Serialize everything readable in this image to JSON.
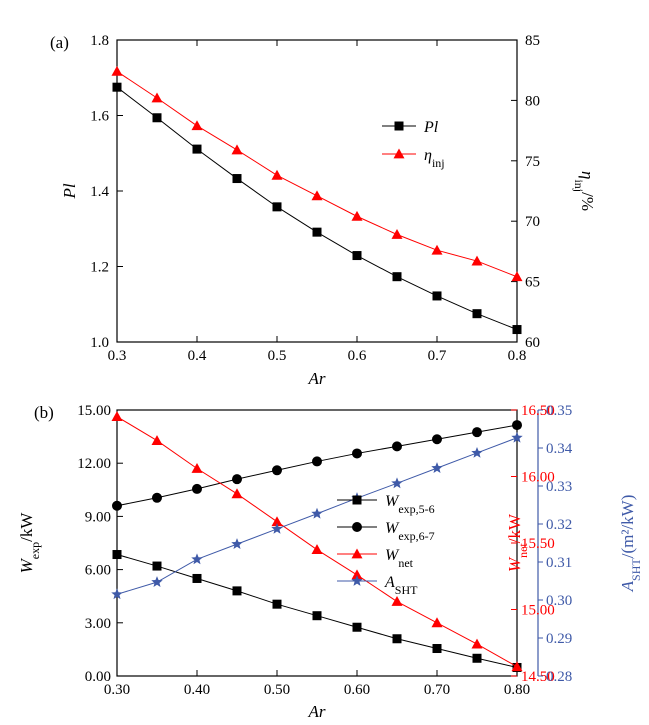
{
  "chart_data": [
    {
      "panel": "(a)",
      "type": "line",
      "xlabel": "Ar",
      "xlim": [
        0.3,
        0.8
      ],
      "x_ticks": [
        "0.3",
        "0.4",
        "0.5",
        "0.6",
        "0.7",
        "0.8"
      ],
      "ylabel_left": "Pl",
      "ylim_left": [
        1.0,
        1.8
      ],
      "y_ticks_left": [
        "1.0",
        "1.2",
        "1.4",
        "1.6",
        "1.8"
      ],
      "ylabel_right": "η_inj/%",
      "ylabel_right_parts": {
        "symbol": "η",
        "sub": "inj",
        "tail": "/%"
      },
      "ylim_right": [
        60,
        85
      ],
      "y_ticks_right": [
        "60",
        "65",
        "70",
        "75",
        "80",
        "85"
      ],
      "legend_position": "top-right",
      "x": [
        0.3,
        0.35,
        0.4,
        0.45,
        0.5,
        0.55,
        0.6,
        0.65,
        0.7,
        0.75,
        0.8
      ],
      "series": [
        {
          "name": "Pl",
          "legend": {
            "sym": "Pl",
            "sub": ""
          },
          "axis": "left",
          "color": "#000000",
          "marker": "square",
          "values": [
            1.675,
            1.594,
            1.511,
            1.433,
            1.358,
            1.291,
            1.229,
            1.173,
            1.122,
            1.075,
            1.033
          ]
        },
        {
          "name": "η_inj",
          "legend": {
            "sym": "η",
            "sub": "inj"
          },
          "axis": "right",
          "color": "#ff0000",
          "marker": "triangle",
          "values": [
            82.4,
            80.2,
            77.9,
            75.9,
            73.8,
            72.1,
            70.4,
            68.9,
            67.6,
            66.7,
            65.4
          ]
        }
      ]
    },
    {
      "panel": "(b)",
      "type": "line",
      "xlabel": "Ar",
      "xlim": [
        0.3,
        0.8
      ],
      "x_ticks": [
        "0.30",
        "0.40",
        "0.50",
        "0.60",
        "0.70",
        "0.80"
      ],
      "y1": {
        "label_parts": {
          "symbol": "W",
          "sub": "exp",
          "tail": "/kW"
        },
        "lim": [
          0,
          15
        ],
        "ticks": [
          "0.00",
          "3.00",
          "6.00",
          "9.00",
          "12.00",
          "15.00"
        ],
        "color": "#000000"
      },
      "y2": {
        "label_parts": {
          "symbol": "W",
          "sub": "net",
          "tail": "/kW"
        },
        "lim": [
          14.5,
          16.5
        ],
        "ticks": [
          "14.50",
          "15.00",
          "15.50",
          "16.00",
          "16.50"
        ],
        "color": "#ff0000"
      },
      "y3": {
        "label_parts": {
          "symbol": "A",
          "sub": "SHT",
          "tail": "/(m²/kW)"
        },
        "lim": [
          0.28,
          0.35
        ],
        "ticks": [
          "0.28",
          "0.29",
          "0.30",
          "0.31",
          "0.32",
          "0.33",
          "0.34",
          "0.35"
        ],
        "color": "#3f5aa8"
      },
      "legend_position": "center-right",
      "x": [
        0.3,
        0.35,
        0.4,
        0.45,
        0.5,
        0.55,
        0.6,
        0.65,
        0.7,
        0.75,
        0.8
      ],
      "series": [
        {
          "name": "W_exp,5-6",
          "legend": {
            "sym": "W",
            "sub": "exp,5-6"
          },
          "axis": "y1",
          "color": "#000000",
          "marker": "square",
          "values": [
            6.85,
            6.2,
            5.5,
            4.8,
            4.05,
            3.4,
            2.75,
            2.1,
            1.55,
            1.0,
            0.48
          ]
        },
        {
          "name": "W_exp,6-7",
          "legend": {
            "sym": "W",
            "sub": "exp,6-7"
          },
          "axis": "y1",
          "color": "#000000",
          "marker": "circle",
          "values": [
            9.6,
            10.05,
            10.55,
            11.1,
            11.6,
            12.1,
            12.55,
            12.95,
            13.35,
            13.75,
            14.15
          ]
        },
        {
          "name": "W_net",
          "legend": {
            "sym": "W",
            "sub": "net"
          },
          "axis": "y2",
          "color": "#ff0000",
          "marker": "triangle",
          "values": [
            16.45,
            16.27,
            16.06,
            15.87,
            15.66,
            15.45,
            15.26,
            15.06,
            14.9,
            14.74,
            14.57
          ]
        },
        {
          "name": "A_SHT",
          "legend": {
            "sym": "A",
            "sub": "SHT"
          },
          "axis": "y3",
          "color": "#3f5aa8",
          "marker": "star",
          "values": [
            0.3015,
            0.3047,
            0.3107,
            0.3147,
            0.3187,
            0.3227,
            0.3268,
            0.3307,
            0.3347,
            0.3387,
            0.3427
          ]
        }
      ]
    }
  ]
}
